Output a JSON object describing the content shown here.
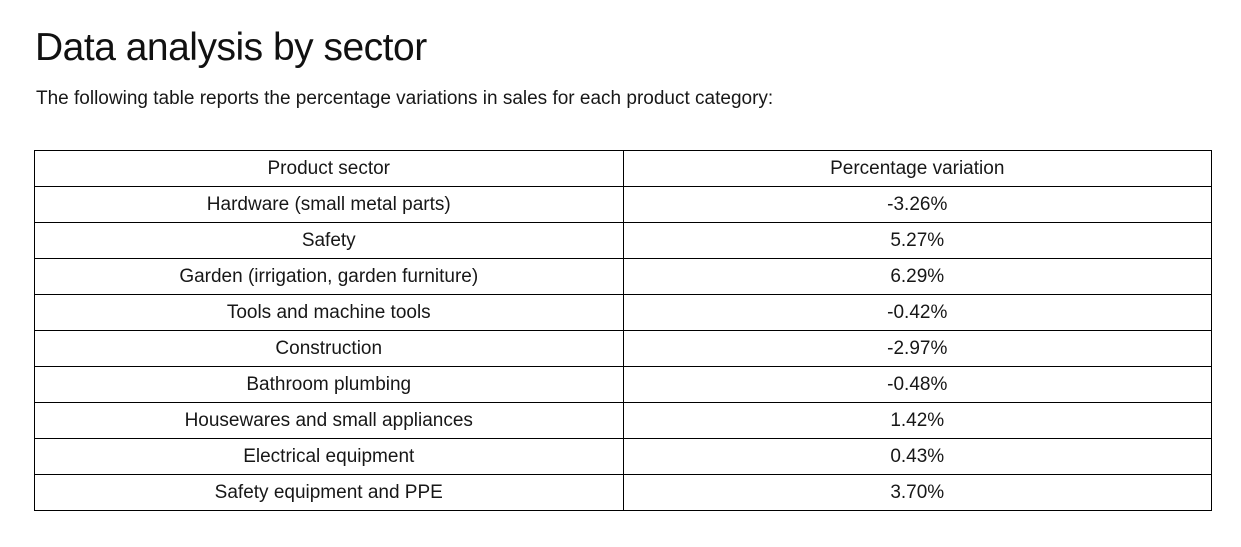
{
  "page": {
    "title": "Data analysis by sector",
    "subtitle": "The following table reports the percentage variations in sales for each product category:"
  },
  "table": {
    "headers": {
      "sector": "Product sector",
      "variation": "Percentage variation"
    },
    "rows": [
      {
        "sector": "Hardware (small metal parts)",
        "variation": "-3.26%"
      },
      {
        "sector": "Safety",
        "variation": "5.27%"
      },
      {
        "sector": "Garden (irrigation, garden furniture)",
        "variation": "6.29%"
      },
      {
        "sector": "Tools and machine tools",
        "variation": "-0.42%"
      },
      {
        "sector": "Construction",
        "variation": "-2.97%"
      },
      {
        "sector": "Bathroom plumbing",
        "variation": "-0.48%"
      },
      {
        "sector": "Housewares and small appliances",
        "variation": "1.42%"
      },
      {
        "sector": "Electrical equipment",
        "variation": "0.43%"
      },
      {
        "sector": "Safety equipment and PPE",
        "variation": "3.70%"
      }
    ]
  },
  "chart_data": {
    "type": "table",
    "title": "Data analysis by sector",
    "categories": [
      "Hardware (small metal parts)",
      "Safety",
      "Garden (irrigation, garden furniture)",
      "Tools and machine tools",
      "Construction",
      "Bathroom plumbing",
      "Housewares and small appliances",
      "Electrical equipment",
      "Safety equipment and PPE"
    ],
    "values": [
      -3.26,
      5.27,
      6.29,
      -0.42,
      -2.97,
      -0.48,
      1.42,
      0.43,
      3.7
    ],
    "xlabel": "Product sector",
    "ylabel": "Percentage variation"
  }
}
